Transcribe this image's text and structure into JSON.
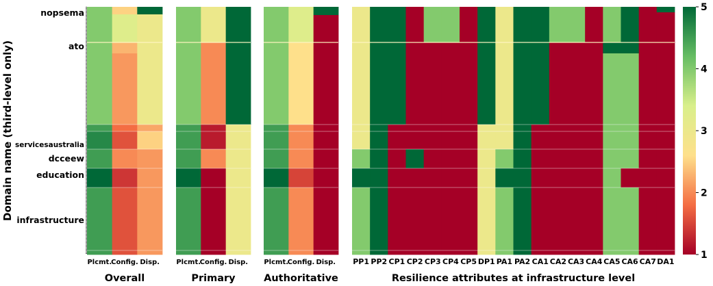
{
  "figure": {
    "ylabel": "Domain name (third-level only)",
    "domain_labels": [
      "nopsema",
      "ato",
      "servicesaustralia",
      "dcceew",
      "education",
      "infrastructure"
    ]
  },
  "colorbar": {
    "ticks": [
      "1",
      "2",
      "3",
      "4",
      "5"
    ],
    "stops": [
      "#a50026",
      "#f46d43",
      "#fee08b",
      "#d9ef8b",
      "#66bd63",
      "#006837"
    ],
    "range": [
      1,
      5
    ]
  },
  "chart_data": [
    {
      "type": "heatmap",
      "title": "Overall",
      "columns": [
        "Plcmt.",
        "Config.",
        "Disp."
      ],
      "rows": [
        {
          "domain": "nopsema",
          "values": [
            4,
            2.5,
            5
          ]
        },
        {
          "domain": "nopsema",
          "values": [
            4,
            3.3,
            3
          ]
        },
        {
          "domain": "ato",
          "values": [
            4,
            2.3,
            3
          ]
        },
        {
          "domain": "ato",
          "values": [
            4,
            2.1,
            3
          ]
        },
        {
          "domain": "servicesaustralia",
          "values": [
            4.5,
            1.8,
            2.2
          ]
        },
        {
          "domain": "servicesaustralia",
          "values": [
            4.7,
            1.6,
            2.5
          ]
        },
        {
          "domain": "dcceew",
          "values": [
            4.5,
            2,
            2.1
          ]
        },
        {
          "domain": "education",
          "values": [
            5,
            1.4,
            2.1
          ]
        },
        {
          "domain": "infrastructure",
          "values": [
            4.5,
            1.6,
            2.1
          ]
        }
      ]
    },
    {
      "type": "heatmap",
      "title": "Primary",
      "columns": [
        "Plcmt.",
        "Config.",
        "Disp."
      ],
      "rows": [
        {
          "domain": "nopsema",
          "values": [
            4,
            3,
            5
          ]
        },
        {
          "domain": "ato",
          "values": [
            4,
            2,
            5
          ]
        },
        {
          "domain": "servicesaustralia",
          "values": [
            4.5,
            1.2,
            3
          ]
        },
        {
          "domain": "dcceew",
          "values": [
            4.5,
            2,
            3
          ]
        },
        {
          "domain": "education",
          "values": [
            5,
            1,
            3
          ]
        },
        {
          "domain": "infrastructure",
          "values": [
            4.5,
            1,
            3
          ]
        }
      ]
    },
    {
      "type": "heatmap",
      "title": "Authoritative",
      "columns": [
        "Plcmt.",
        "Config.",
        "Disp."
      ],
      "rows": [
        {
          "domain": "nopsema",
          "values": [
            4,
            3.3,
            5
          ]
        },
        {
          "domain": "nopsema",
          "values": [
            4,
            3.3,
            1
          ]
        },
        {
          "domain": "ato",
          "values": [
            4,
            2.6,
            1
          ]
        },
        {
          "domain": "servicesaustralia",
          "values": [
            4.5,
            2,
            1
          ]
        },
        {
          "domain": "dcceew",
          "values": [
            4.5,
            2,
            1
          ]
        },
        {
          "domain": "education",
          "values": [
            5,
            1.5,
            1
          ]
        },
        {
          "domain": "infrastructure",
          "values": [
            4.5,
            2,
            1
          ]
        }
      ]
    },
    {
      "type": "heatmap",
      "title": "Resilience attributes at infrastructure level",
      "columns": [
        "PP1",
        "PP2",
        "CP1",
        "CP2",
        "CP3",
        "CP4",
        "CP5",
        "DP1",
        "PA1",
        "PA2",
        "CA1",
        "CA2",
        "CA3",
        "CA4",
        "CA5",
        "CA6",
        "CA7",
        "DA1"
      ],
      "rows": [
        {
          "domain": "nopsema",
          "values": [
            3,
            5,
            5,
            1,
            4,
            4,
            1,
            5,
            3,
            5,
            5,
            4,
            4,
            1,
            4,
            5,
            1,
            5
          ]
        },
        {
          "domain": "nopsema",
          "values": [
            3,
            5,
            5,
            1,
            4,
            4,
            1,
            5,
            3,
            5,
            5,
            4,
            4,
            1,
            4,
            5,
            1,
            1
          ]
        },
        {
          "domain": "ato",
          "values": [
            3,
            5,
            5,
            1,
            1,
            1,
            1,
            5,
            3,
            5,
            5,
            1,
            1,
            1,
            5,
            5,
            1,
            1
          ]
        },
        {
          "domain": "ato",
          "values": [
            3,
            5,
            5,
            1,
            1,
            1,
            1,
            5,
            3,
            5,
            5,
            1,
            1,
            1,
            4,
            4,
            1,
            1
          ]
        },
        {
          "domain": "servicesaustralia",
          "values": [
            3,
            5,
            1,
            1,
            1,
            1,
            1,
            3,
            3,
            5,
            1,
            1,
            1,
            1,
            4,
            4,
            1,
            1
          ]
        },
        {
          "domain": "dcceew",
          "values": [
            4,
            5,
            1,
            5,
            1,
            1,
            1,
            3,
            4,
            5,
            1,
            1,
            1,
            1,
            4,
            4,
            1,
            1
          ]
        },
        {
          "domain": "education",
          "values": [
            5,
            5,
            1,
            1,
            1,
            1,
            1,
            3,
            5,
            5,
            1,
            1,
            1,
            1,
            4,
            1,
            1,
            1
          ]
        },
        {
          "domain": "infrastructure",
          "values": [
            4,
            5,
            1,
            1,
            1,
            1,
            1,
            3,
            4,
            5,
            1,
            1,
            1,
            1,
            4,
            4,
            1,
            1
          ]
        }
      ]
    }
  ]
}
